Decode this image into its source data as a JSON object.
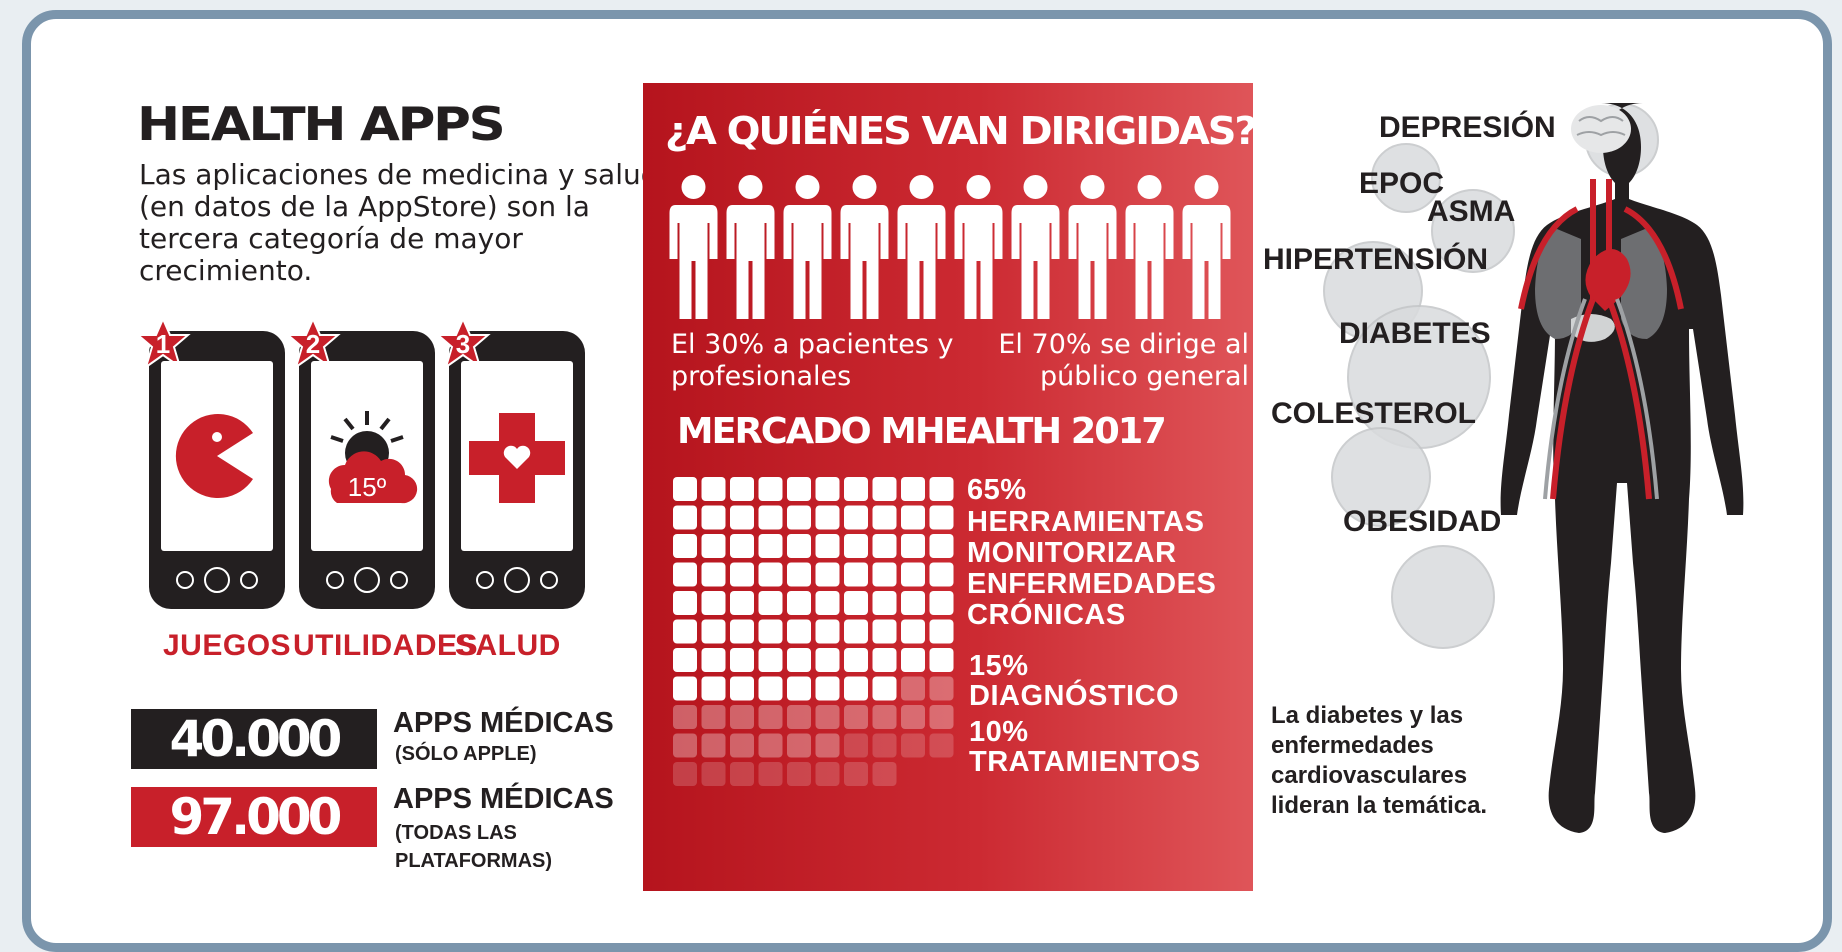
{
  "header": {
    "title": "HEALTH APPS",
    "intro": "Las aplicaciones de medicina y salud (en datos de la AppStore) son la tercera categoría de mayor crecimiento."
  },
  "rankings": [
    {
      "rank": "1",
      "label": "JUEGOS",
      "icon": "pacman-icon"
    },
    {
      "rank": "2",
      "label": "UTILIDADES",
      "icon": "weather-icon",
      "temperature": "15º"
    },
    {
      "rank": "3",
      "label": "SALUD",
      "icon": "red-cross-heart-icon"
    }
  ],
  "stats": [
    {
      "number": "40.000",
      "label": "APPS MÉDICAS",
      "sub": "(SÓLO APPLE)",
      "color": "#231f20"
    },
    {
      "number": "97.000",
      "label": "APPS MÉDICAS",
      "sub": "(TODAS LAS PLATAFORMAS)",
      "color": "#c8202a"
    }
  ],
  "audience": {
    "title": "¿A QUIÉNES VAN DIRIGIDAS?",
    "left_caption": "El 30% a pacientes y profesionales",
    "right_caption": "El 70% se dirige al público general",
    "figures_total": 10,
    "patient_professional_figures": 3
  },
  "market": {
    "title": "MERCADO MHEALTH 2017",
    "segments": [
      {
        "percent": 65,
        "percent_label": "65%",
        "label": "HERRAMIENTAS MONITORIZAR ENFERMEDADES CRÓNICAS"
      },
      {
        "percent": 15,
        "percent_label": "15%",
        "label": "DIAGNÓSTICO"
      },
      {
        "percent": 10,
        "percent_label": "10%",
        "label": "TRATAMIENTOS"
      }
    ]
  },
  "conditions": [
    "DEPRESIÓN",
    "EPOC",
    "ASMA",
    "HIPERTENSIÓN",
    "DIABETES",
    "COLESTEROL",
    "OBESIDAD"
  ],
  "footer_note": "La diabetes y las enfermedades cardiovasculares lideran la temática.",
  "colors": {
    "accent": "#c8202a",
    "dark": "#231f20",
    "frame": "#7b95ac",
    "bubble": "#d9dbdd"
  }
}
